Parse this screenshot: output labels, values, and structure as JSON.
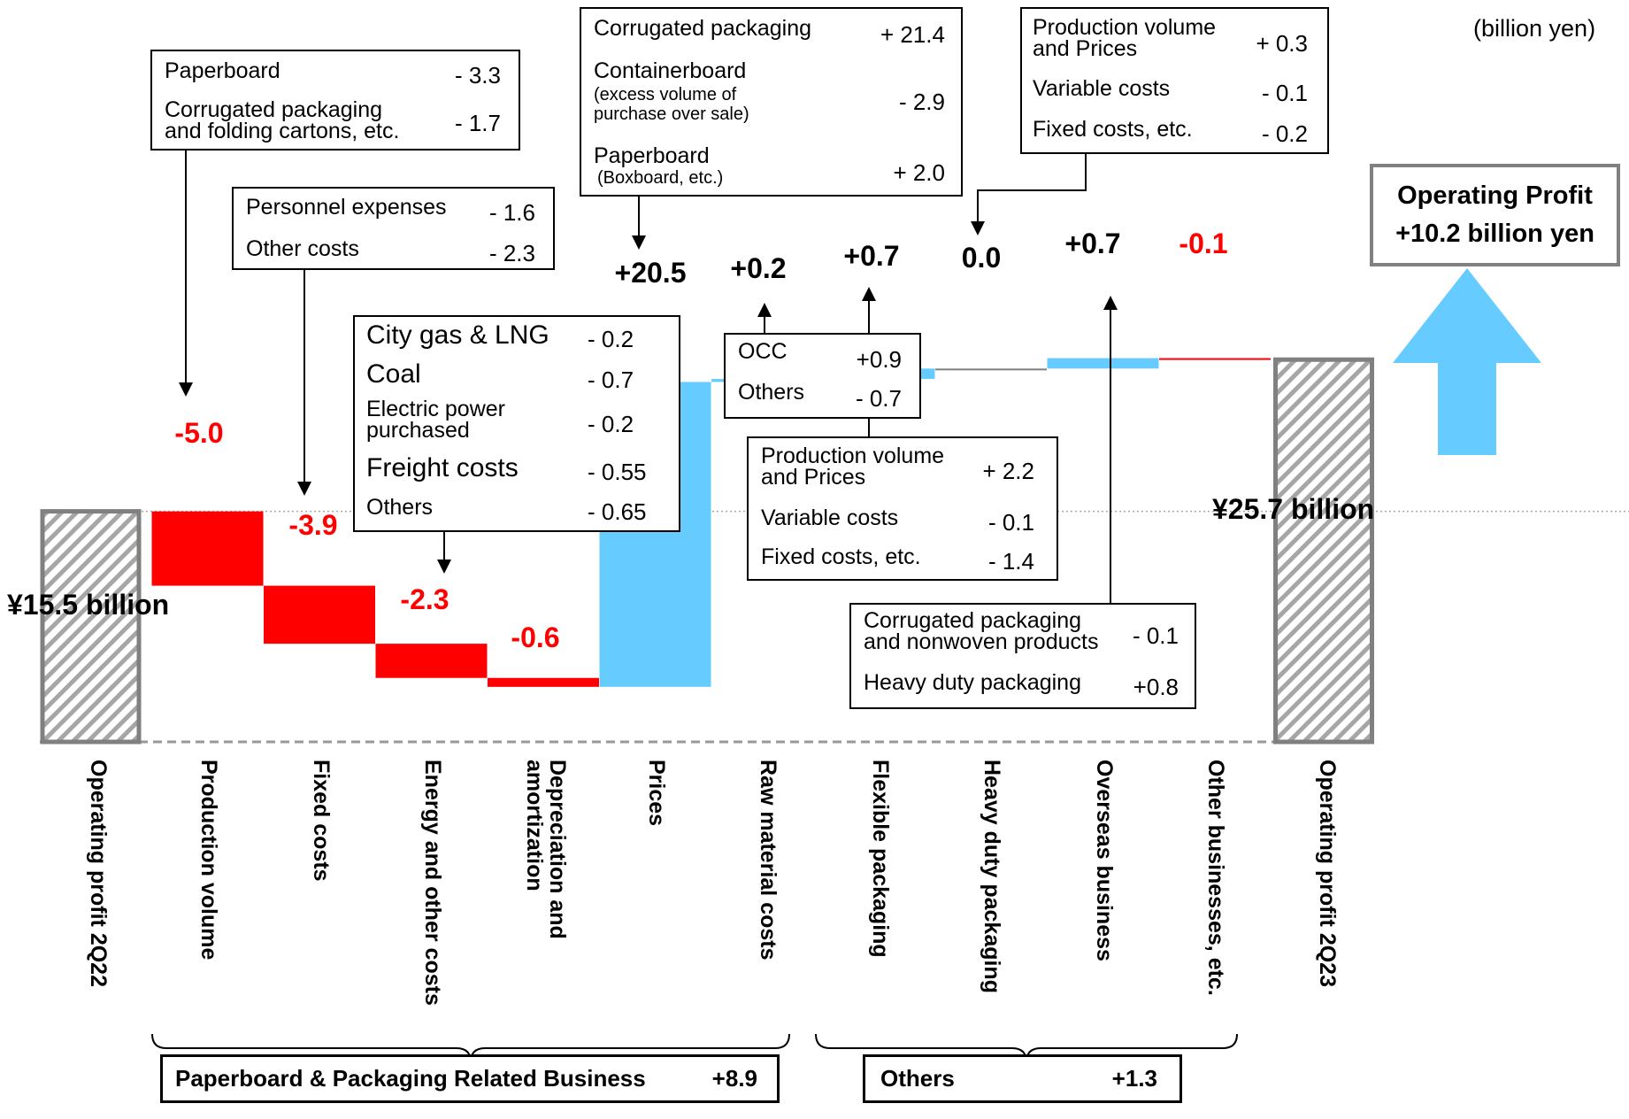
{
  "unit_note": "(billion yen)",
  "chart_data": {
    "type": "waterfall",
    "start": {
      "label": "Operating profit 2Q22",
      "value": 15.5,
      "display": "¥15.5 billion"
    },
    "end": {
      "label": "Operating profit 2Q23",
      "value": 25.7,
      "display": "¥25.7 billion"
    },
    "steps": [
      {
        "label": "Production volume",
        "value": -5.0,
        "display": "-5.0"
      },
      {
        "label": "Fixed costs",
        "value": -3.9,
        "display": "-3.9"
      },
      {
        "label": "Energy and other costs",
        "value": -2.3,
        "display": "-2.3"
      },
      {
        "label": "Depreciation and amortization",
        "value": -0.6,
        "display": "-0.6"
      },
      {
        "label": "Prices",
        "value": 20.5,
        "display": "+20.5"
      },
      {
        "label": "Raw material costs",
        "value": 0.2,
        "display": "+0.2"
      },
      {
        "label": "Flexible packaging",
        "value": 0.7,
        "display": "+0.7"
      },
      {
        "label": "Heavy duty packaging",
        "value": 0.0,
        "display": "0.0"
      },
      {
        "label": "Overseas business",
        "value": 0.7,
        "display": "+0.7"
      },
      {
        "label": "Other businesses, etc.",
        "value": -0.1,
        "display": "-0.1"
      }
    ],
    "colors": {
      "positive": "#66ccff",
      "negative": "#ff0000",
      "zero": "#808080",
      "total": "#808080"
    }
  },
  "callouts": {
    "production_volume": {
      "r0": {
        "label": "Paperboard",
        "value": "- 3.3"
      },
      "r1": {
        "label": "Corrugated packaging and folding cartons, etc.",
        "value": "- 1.7"
      }
    },
    "fixed_costs": {
      "r0": {
        "label": "Personnel expenses",
        "value": "- 1.6"
      },
      "r1": {
        "label": "Other costs",
        "value": "- 2.3"
      }
    },
    "energy": {
      "r0": {
        "label": "City gas & LNG",
        "value": "- 0.2"
      },
      "r1": {
        "label": "Coal",
        "value": "- 0.7"
      },
      "r2": {
        "label": "Electric power purchased",
        "value": "- 0.2"
      },
      "r3": {
        "label": "Freight costs",
        "value": "- 0.55"
      },
      "r4": {
        "label": "Others",
        "value": "- 0.65"
      }
    },
    "prices": {
      "r0": {
        "label": "Corrugated packaging",
        "value": "+ 21.4"
      },
      "r1": {
        "label": "Containerboard",
        "sub": "(excess volume of purchase over sale)",
        "value": "- 2.9"
      },
      "r2": {
        "label": "Paperboard",
        "sub": "(Boxboard, etc.)",
        "value": "+ 2.0"
      }
    },
    "raw_material": {
      "r0": {
        "label": "OCC",
        "value": "+0.9"
      },
      "r1": {
        "label": "Others",
        "value": "- 0.7"
      }
    },
    "flexible": {
      "r0": {
        "label": "Production volume and Prices",
        "value": "+ 2.2"
      },
      "r1": {
        "label": "Variable costs",
        "value": "- 0.1"
      },
      "r2": {
        "label": "Fixed costs, etc.",
        "value": "- 1.4"
      }
    },
    "overseas": {
      "r0": {
        "label": "Corrugated packaging and nonwoven products",
        "value": "- 0.1"
      },
      "r1": {
        "label": "Heavy duty packaging",
        "value": "+0.8"
      }
    },
    "other_businesses": {
      "r0": {
        "label": "Production volume and Prices",
        "value": "+ 0.3"
      },
      "r1": {
        "label": "Variable costs",
        "value": "- 0.1"
      },
      "r2": {
        "label": "Fixed costs, etc.",
        "value": "- 0.2"
      }
    }
  },
  "result_box": {
    "line1": "Operating Profit",
    "line2": "+10.2 billion yen"
  },
  "segments": {
    "paperboard": {
      "label": "Paperboard & Packaging Related Business",
      "value": "+8.9"
    },
    "others": {
      "label": "Others",
      "value": "+1.3"
    }
  }
}
